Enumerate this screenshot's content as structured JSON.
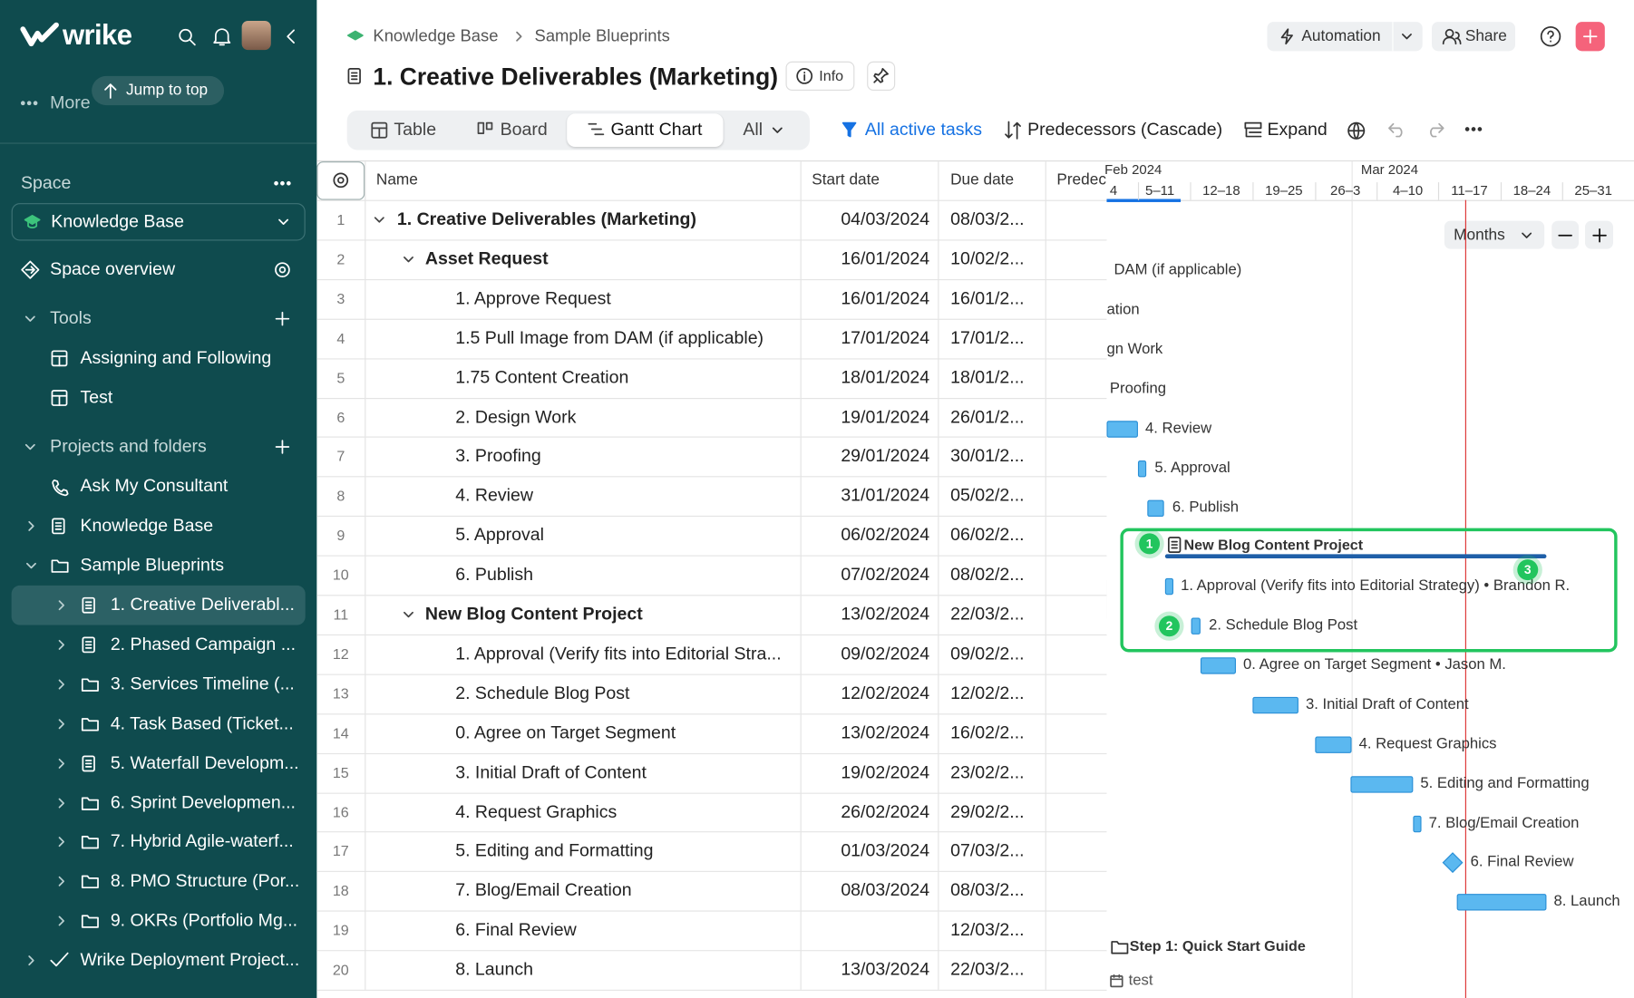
{
  "sidebar": {
    "logo": "wrike",
    "more": "More",
    "jump": "Jump to top",
    "space_label": "Space",
    "space_name": "Knowledge Base",
    "overview": "Space overview",
    "tools": "Tools",
    "tool_items": [
      "Assigning and Following",
      "Test"
    ],
    "projects": "Projects and folders",
    "folders": [
      "Ask My Consultant",
      "Knowledge Base",
      "Sample Blueprints"
    ],
    "blueprints": [
      "1. Creative Deliverabl...",
      "2. Phased Campaign ...",
      "3. Services Timeline (...",
      "4. Task Based (Ticket...",
      "5. Waterfall Developm...",
      "6. Sprint Developmen...",
      "7. Hybrid Agile-waterf...",
      "8. PMO Structure (Por...",
      "9. OKRs (Portfolio Mg..."
    ],
    "footer_item": "Wrike Deployment Project..."
  },
  "header": {
    "breadcrumb": [
      "Knowledge Base",
      "Sample Blueprints"
    ],
    "title": "1. Creative Deliverables (Marketing)",
    "info": "Info",
    "automation": "Automation",
    "share": "Share"
  },
  "toolbar": {
    "views": [
      "Table",
      "Board",
      "Gantt Chart",
      "All"
    ],
    "filter": "All active tasks",
    "predecessors": "Predecessors (Cascade)",
    "expand": "Expand"
  },
  "table": {
    "columns": [
      "Name",
      "Start date",
      "Due date",
      "Predec"
    ],
    "rows": [
      [
        "1",
        "1. Creative Deliverables (Marketing)",
        "04/03/2024",
        "08/03/2..."
      ],
      [
        "2",
        "Asset Request",
        "16/01/2024",
        "10/02/2..."
      ],
      [
        "3",
        "1. Approve Request",
        "16/01/2024",
        "16/01/2..."
      ],
      [
        "4",
        "1.5 Pull Image from DAM (if applicable)",
        "17/01/2024",
        "17/01/2..."
      ],
      [
        "5",
        "1.75 Content Creation",
        "18/01/2024",
        "18/01/2..."
      ],
      [
        "6",
        "2. Design Work",
        "19/01/2024",
        "26/01/2..."
      ],
      [
        "7",
        "3. Proofing",
        "29/01/2024",
        "30/01/2..."
      ],
      [
        "8",
        "4. Review",
        "31/01/2024",
        "05/02/2..."
      ],
      [
        "9",
        "5. Approval",
        "06/02/2024",
        "06/02/2..."
      ],
      [
        "10",
        "6. Publish",
        "07/02/2024",
        "08/02/2..."
      ],
      [
        "11",
        "New Blog Content Project",
        "13/02/2024",
        "22/03/2..."
      ],
      [
        "12",
        "1. Approval (Verify fits into Editorial Stra...",
        "09/02/2024",
        "09/02/2..."
      ],
      [
        "13",
        "2. Schedule Blog Post",
        "12/02/2024",
        "12/02/2..."
      ],
      [
        "14",
        "0. Agree on Target Segment",
        "13/02/2024",
        "16/02/2..."
      ],
      [
        "15",
        "3. Initial Draft of Content",
        "19/02/2024",
        "23/02/2..."
      ],
      [
        "16",
        "4. Request Graphics",
        "26/02/2024",
        "29/02/2..."
      ],
      [
        "17",
        "5. Editing and Formatting",
        "01/03/2024",
        "07/03/2..."
      ],
      [
        "18",
        "7. Blog/Email Creation",
        "08/03/2024",
        "08/03/2..."
      ],
      [
        "19",
        "6. Final Review",
        null,
        "12/03/2..."
      ],
      [
        "20",
        "8. Launch",
        "13/03/2024",
        "22/03/2..."
      ]
    ]
  },
  "gantt": {
    "months": [
      "Feb 2024",
      "Mar 2024"
    ],
    "weeks": [
      "4",
      "5–11",
      "12–18",
      "19–25",
      "26–3",
      "4–10",
      "11–17",
      "18–24",
      "25–31"
    ],
    "zoom": "Months",
    "tasks": [
      "DAM (if applicable)",
      "ation",
      "gn Work",
      "Proofing",
      "4. Review",
      "5. Approval",
      "6. Publish",
      "New Blog Content Project",
      "1. Approval (Verify fits into Editorial Strategy) • Brandon R.",
      "2. Schedule Blog Post",
      "0. Agree on Target Segment • Jason M.",
      "3. Initial Draft of Content",
      "4. Request Graphics",
      "5. Editing and Formatting",
      "7. Blog/Email Creation",
      "6. Final Review",
      "8. Launch",
      "Step 1: Quick Start Guide",
      "test"
    ],
    "callouts": [
      "1",
      "2",
      "3"
    ]
  }
}
